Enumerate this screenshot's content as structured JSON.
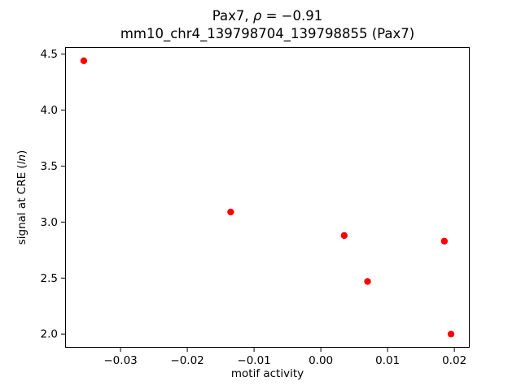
{
  "chart_data": {
    "type": "scatter",
    "title_parts": [
      "Pax7, ",
      "ρ",
      " = −0.91"
    ],
    "subtitle": "mm10_chr4_139798704_139798855 (Pax7)",
    "xlabel": "motif activity",
    "ylabel_parts": [
      "signal at CRE (",
      "ln",
      ")"
    ],
    "marker_color": "#ff0000",
    "marker_radius": 4.2,
    "axes_color": "#000000",
    "grid": false,
    "legend": null,
    "xlim": [
      -0.0383,
      0.0223
    ],
    "ylim": [
      1.878,
      4.562
    ],
    "xticks": [
      {
        "value": -0.03,
        "label": "−0.03"
      },
      {
        "value": -0.02,
        "label": "−0.02"
      },
      {
        "value": -0.01,
        "label": "−0.01"
      },
      {
        "value": 0.0,
        "label": "0.00"
      },
      {
        "value": 0.01,
        "label": "0.01"
      },
      {
        "value": 0.02,
        "label": "0.02"
      }
    ],
    "yticks": [
      {
        "value": 2.0,
        "label": "2.0"
      },
      {
        "value": 2.5,
        "label": "2.5"
      },
      {
        "value": 3.0,
        "label": "3.0"
      },
      {
        "value": 3.5,
        "label": "3.5"
      },
      {
        "value": 4.0,
        "label": "4.0"
      },
      {
        "value": 4.5,
        "label": "4.5"
      }
    ],
    "points": [
      [
        -0.0355,
        4.44
      ],
      [
        -0.0135,
        3.09
      ],
      [
        0.0035,
        2.88
      ],
      [
        0.007,
        2.47
      ],
      [
        0.0185,
        2.83
      ],
      [
        0.0195,
        2.0
      ]
    ]
  }
}
